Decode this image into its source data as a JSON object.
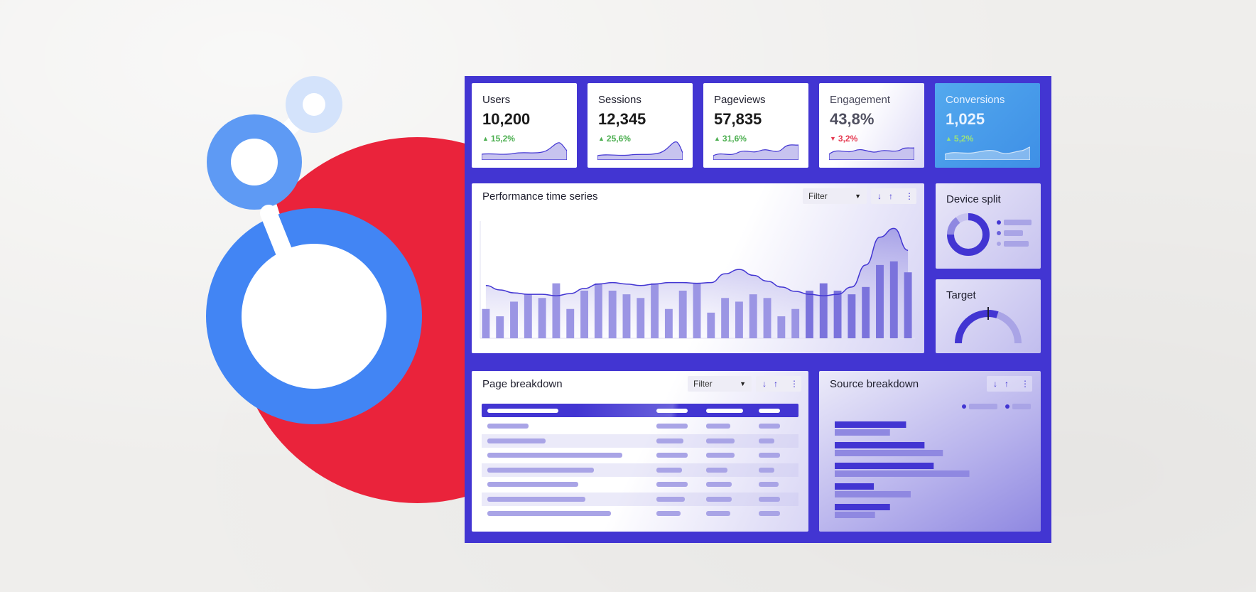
{
  "colors": {
    "accent": "#4235d2",
    "positive": "#4caf50",
    "negative": "#e53950",
    "logo_red": "#ea233b",
    "logo_blue": "#4285f4"
  },
  "kpis": [
    {
      "title": "Users",
      "value": "10,200",
      "delta": "15,2%",
      "direction": "up"
    },
    {
      "title": "Sessions",
      "value": "12,345",
      "delta": "25,6%",
      "direction": "up"
    },
    {
      "title": "Pageviews",
      "value": "57,835",
      "delta": "31,6%",
      "direction": "up"
    },
    {
      "title": "Engagement",
      "value": "43,8%",
      "delta": "3,2%",
      "direction": "down"
    },
    {
      "title": "Conversions",
      "value": "1,025",
      "delta": "5,2%",
      "direction": "up"
    }
  ],
  "timeseries": {
    "title": "Performance time series",
    "filter_label": "Filter",
    "sort_down": "↓",
    "sort_up": "↑",
    "more": "⋮",
    "bars": [
      40,
      30,
      50,
      60,
      55,
      75,
      40,
      65,
      75,
      65,
      60,
      55,
      75,
      40,
      65,
      75,
      35,
      55,
      50,
      60,
      55,
      30,
      40,
      65,
      75,
      65,
      60,
      70,
      100,
      105,
      90
    ],
    "line": [
      72,
      66,
      62,
      60,
      60,
      58,
      61,
      68,
      74,
      76,
      74,
      72,
      74,
      76,
      76,
      75,
      76,
      88,
      94,
      86,
      78,
      70,
      64,
      60,
      58,
      60,
      70,
      100,
      138,
      150,
      120
    ],
    "ylim": [
      0,
      160
    ]
  },
  "device_split": {
    "title": "Device split",
    "slices": [
      75,
      15,
      10
    ]
  },
  "target": {
    "title": "Target",
    "progress": 0.6,
    "marker": 0.5
  },
  "page_breakdown": {
    "title": "Page breakdown",
    "filter_label": "Filter",
    "sort_down": "↓",
    "sort_up": "↑",
    "more": "⋮",
    "row_count": 7
  },
  "source_breakdown": {
    "title": "Source breakdown",
    "sort_down": "↓",
    "sort_up": "↑",
    "more": "⋮",
    "bars": [
      {
        "a": 0.62,
        "b": 0.48
      },
      {
        "a": 0.78,
        "b": 0.94
      },
      {
        "a": 0.86,
        "b": 1.17
      },
      {
        "a": 0.34,
        "b": 0.66
      },
      {
        "a": 0.48,
        "b": 0.35
      }
    ]
  }
}
